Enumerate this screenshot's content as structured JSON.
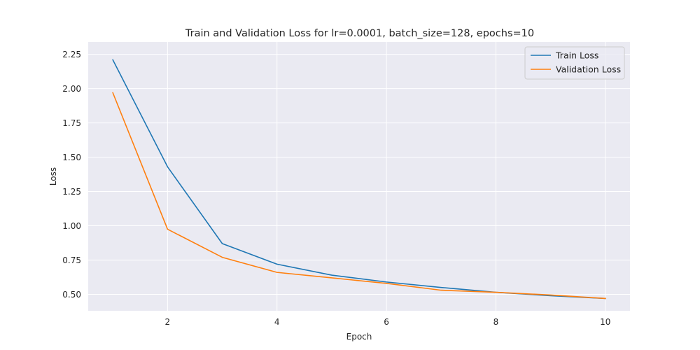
{
  "chart_data": {
    "type": "line",
    "title": "Train and Validation Loss for lr=0.0001, batch_size=128, epochs=10",
    "xlabel": "Epoch",
    "ylabel": "Loss",
    "x": [
      1,
      2,
      3,
      4,
      5,
      6,
      7,
      8,
      9,
      10
    ],
    "xlim": [
      0.55,
      10.45
    ],
    "ylim": [
      0.38,
      2.34
    ],
    "xticks": [
      2,
      4,
      6,
      8,
      10
    ],
    "yticks": [
      0.5,
      0.75,
      1.0,
      1.25,
      1.5,
      1.75,
      2.0,
      2.25
    ],
    "xtick_labels": [
      "2",
      "4",
      "6",
      "8",
      "10"
    ],
    "ytick_labels": [
      "0.50",
      "0.75",
      "1.00",
      "1.25",
      "1.50",
      "1.75",
      "2.00",
      "2.25"
    ],
    "grid": true,
    "legend_position": "top-right",
    "series": [
      {
        "name": "Train Loss",
        "color": "#1f77b4",
        "values": [
          2.21,
          1.43,
          0.87,
          0.72,
          0.64,
          0.59,
          0.55,
          0.515,
          0.49,
          0.47
        ]
      },
      {
        "name": "Validation Loss",
        "color": "#ff7f0e",
        "values": [
          1.97,
          0.975,
          0.77,
          0.66,
          0.62,
          0.58,
          0.53,
          0.515,
          0.495,
          0.47
        ]
      }
    ],
    "style": {
      "plot_background": "#eaeaf2",
      "grid_color": "#ffffff"
    }
  }
}
